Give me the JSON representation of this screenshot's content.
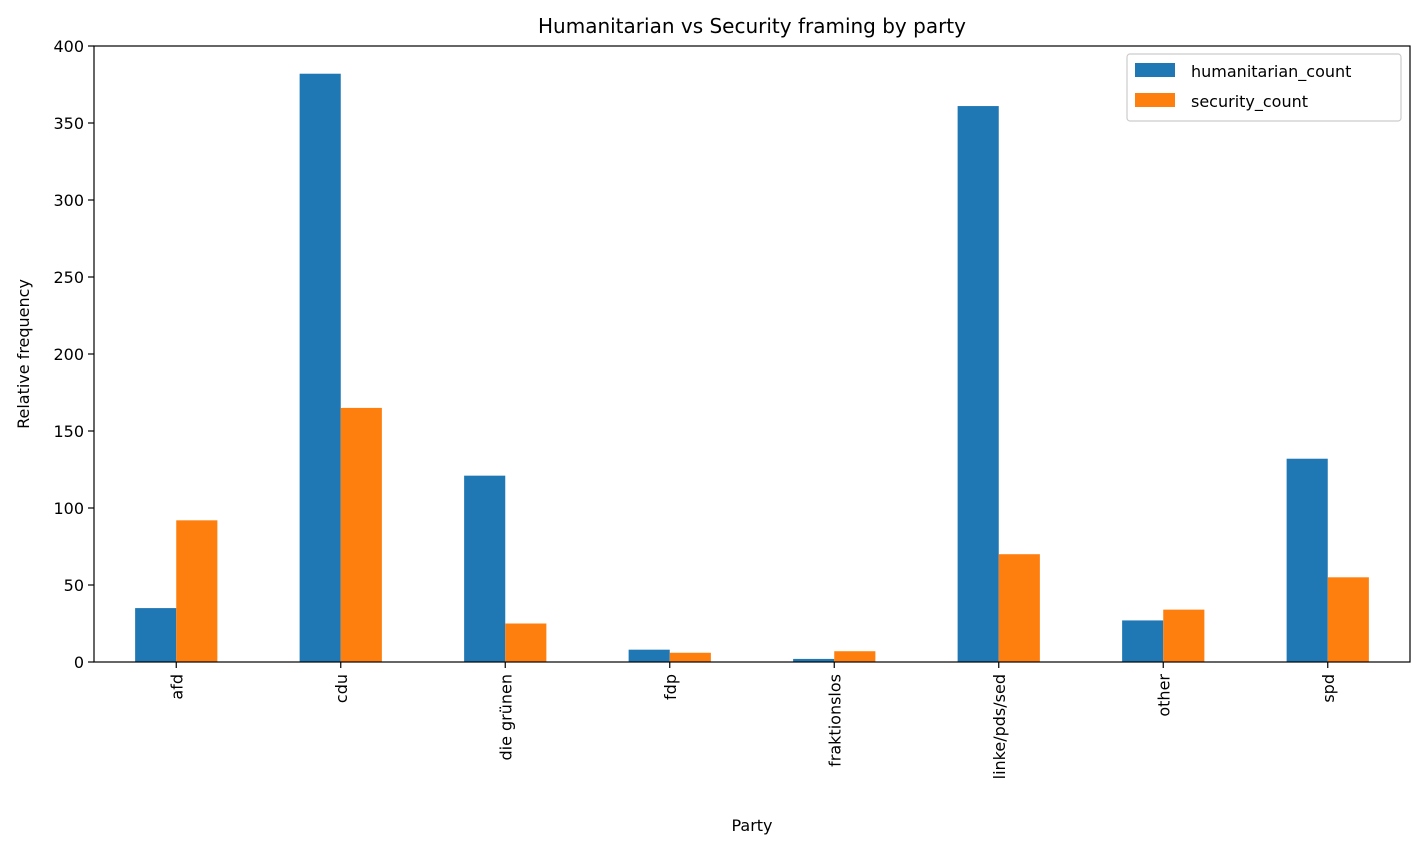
{
  "chart_data": {
    "type": "bar",
    "title": "Humanitarian vs Security framing by party",
    "xlabel": "Party",
    "ylabel": "Relative frequency",
    "ylim": [
      0,
      400
    ],
    "yticks": [
      0,
      50,
      100,
      150,
      200,
      250,
      300,
      350,
      400
    ],
    "categories": [
      "afd",
      "cdu",
      "die grünen",
      "fdp",
      "fraktionslos",
      "linke/pds/sed",
      "other",
      "spd"
    ],
    "series": [
      {
        "name": "humanitarian_count",
        "color": "#1f77b4",
        "values": [
          35,
          382,
          121,
          8,
          2,
          361,
          27,
          132
        ]
      },
      {
        "name": "security_count",
        "color": "#ff7f0e",
        "values": [
          92,
          165,
          25,
          6,
          7,
          70,
          34,
          55
        ]
      }
    ],
    "grid": false,
    "legend": "top-right"
  }
}
